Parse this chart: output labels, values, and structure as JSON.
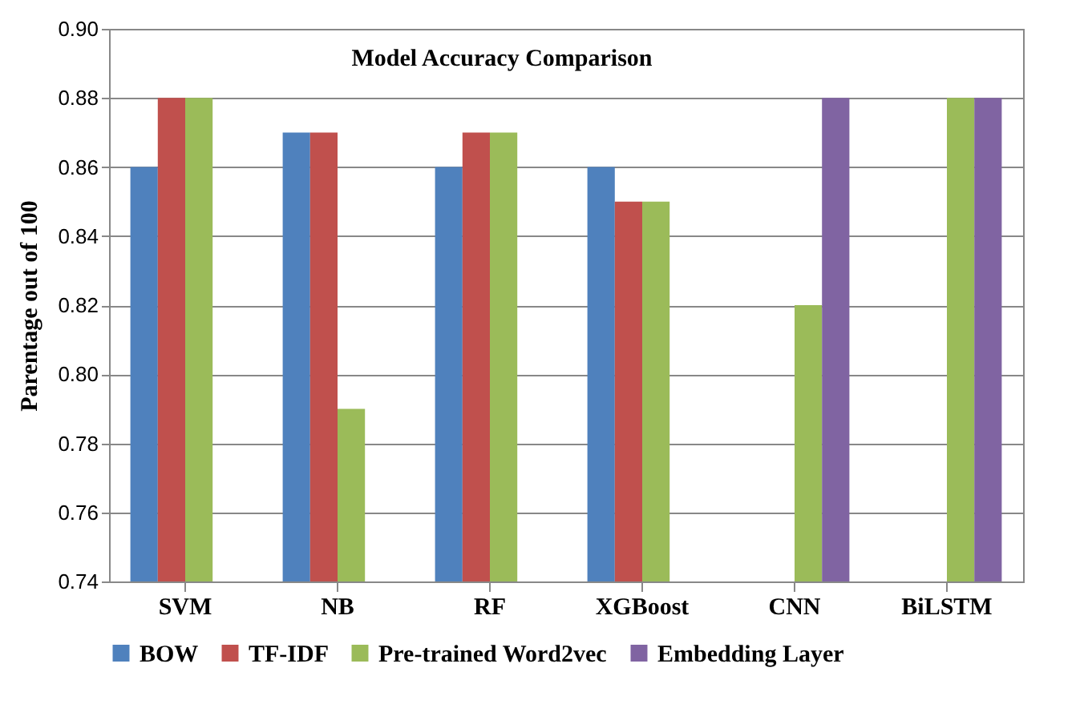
{
  "chart_data": {
    "type": "bar",
    "title": "Model Accuracy  Comparison",
    "ylabel": "Parentage out of 100",
    "categories": [
      "SVM",
      "NB",
      "RF",
      "XGBoost",
      "CNN",
      "BiLSTM"
    ],
    "series": [
      {
        "name": "BOW",
        "color": "#4f81bd",
        "values": [
          0.86,
          0.87,
          0.86,
          0.86,
          null,
          null
        ]
      },
      {
        "name": "TF-IDF",
        "color": "#c0504d",
        "values": [
          0.88,
          0.87,
          0.87,
          0.85,
          null,
          null
        ]
      },
      {
        "name": "Pre-trained Word2vec",
        "color": "#9bbb59",
        "values": [
          0.88,
          0.79,
          0.87,
          0.85,
          0.82,
          0.88
        ]
      },
      {
        "name": "Embedding Layer",
        "color": "#8064a2",
        "values": [
          null,
          null,
          null,
          null,
          0.88,
          0.88
        ]
      }
    ],
    "ylim": [
      0.74,
      0.9
    ],
    "yticks": [
      0.74,
      0.76,
      0.78,
      {
        "value": 0.8,
        "label": "0.80"
      },
      0.82,
      0.84,
      0.86,
      0.88,
      {
        "value": 0.9,
        "label": "0.90"
      }
    ],
    "grid": "y",
    "legend": "bottom"
  }
}
